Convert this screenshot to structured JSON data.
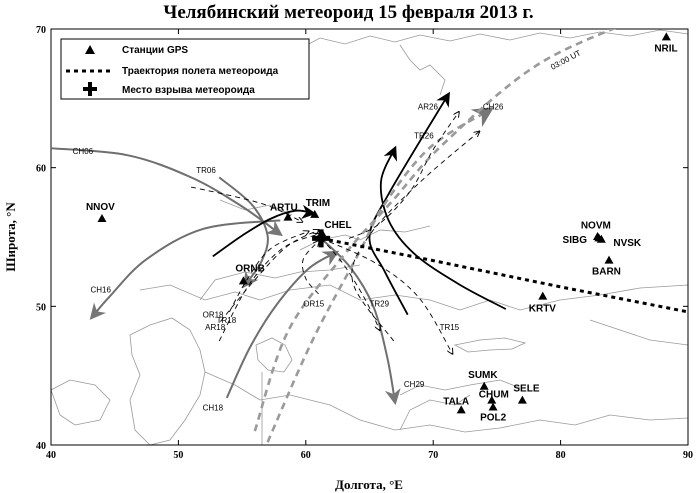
{
  "title": "Челябинский метеороид 15 февраля 2013 г.",
  "axes": {
    "xlabel": "Долгота, °E",
    "ylabel": "Широта, °N",
    "xlim": [
      40,
      90
    ],
    "ylim": [
      40,
      70
    ],
    "xticks": [
      "40",
      "50",
      "60",
      "70",
      "80",
      "90"
    ],
    "yticks": [
      "40",
      "50",
      "60",
      "70"
    ]
  },
  "legend": {
    "stations": "Станции GPS",
    "trajectory": "Траектория полета метеороида",
    "explosion": "Место взрыва метеороида"
  },
  "time_label": "03:00 UT",
  "explosion_point": {
    "lon": 61.2,
    "lat": 54.9
  },
  "stations": [
    {
      "name": "NRIL",
      "lon": 88.3,
      "lat": 69.4
    },
    {
      "name": "NNOV",
      "lon": 44.0,
      "lat": 56.3
    },
    {
      "name": "ARTU",
      "lon": 58.6,
      "lat": 56.4
    },
    {
      "name": "TRIM",
      "lon": 60.7,
      "lat": 56.6
    },
    {
      "name": "CHEL",
      "lon": 61.3,
      "lat": 55.2
    },
    {
      "name": "ORNB",
      "lon": 55.1,
      "lat": 51.8
    },
    {
      "name": "NOVM",
      "lon": 83.0,
      "lat": 54.9
    },
    {
      "name": "SIBG",
      "lon": 82.9,
      "lat": 55.0
    },
    {
      "name": "NVSK",
      "lon": 83.2,
      "lat": 54.8
    },
    {
      "name": "BARN",
      "lon": 83.8,
      "lat": 53.3
    },
    {
      "name": "KRTV",
      "lon": 78.6,
      "lat": 50.7
    },
    {
      "name": "SUMK",
      "lon": 74.0,
      "lat": 44.2
    },
    {
      "name": "CHUM",
      "lon": 74.6,
      "lat": 43.2
    },
    {
      "name": "TALA",
      "lon": 72.2,
      "lat": 42.5
    },
    {
      "name": "POL2",
      "lon": 74.7,
      "lat": 42.7
    },
    {
      "name": "SELE",
      "lon": 77.0,
      "lat": 43.2
    }
  ],
  "trajectory": [
    [
      61.2,
      54.9
    ],
    [
      70,
      53.3
    ],
    [
      80,
      51.4
    ],
    [
      90,
      49.6
    ]
  ],
  "tracks": [
    {
      "name": "CH06",
      "style": "solid",
      "points": [
        [
          40,
          61.4
        ],
        [
          46,
          60.9
        ],
        [
          51,
          59.3
        ],
        [
          55,
          57.2
        ],
        [
          58,
          55.2
        ]
      ]
    },
    {
      "name": "CH16",
      "style": "solid",
      "points": [
        [
          58,
          56.2
        ],
        [
          52,
          55.6
        ],
        [
          47.5,
          53.4
        ],
        [
          44.6,
          50.7
        ],
        [
          43.2,
          49.2
        ]
      ]
    },
    {
      "name": "CH18",
      "style": "solid",
      "points": [
        [
          53.8,
          43.4
        ],
        [
          55.6,
          47
        ],
        [
          57.7,
          50.1
        ],
        [
          60.2,
          52.7
        ],
        [
          62.4,
          53.9
        ]
      ]
    },
    {
      "name": "CH29",
      "style": "solid",
      "points": [
        [
          61.2,
          54.9
        ],
        [
          63.5,
          52.8
        ],
        [
          65.3,
          50
        ],
        [
          66.4,
          46.3
        ],
        [
          67.0,
          43.1
        ]
      ]
    },
    {
      "name": "AR26",
      "style": "solid",
      "points": [
        [
          68,
          49.4
        ],
        [
          66.2,
          52.5
        ],
        [
          65.0,
          55.0
        ],
        [
          66.5,
          58.1
        ],
        [
          71.2,
          65.3
        ]
      ]
    },
    {
      "name": "BLACK-1",
      "style": "solid",
      "points": [
        [
          75.7,
          49.8
        ],
        [
          72,
          51.6
        ],
        [
          68.5,
          53.8
        ],
        [
          66.5,
          56.2
        ],
        [
          65.9,
          59.0
        ],
        [
          67.0,
          61.4
        ]
      ]
    },
    {
      "name": "ARTU-CURVE",
      "style": "solid",
      "points": [
        [
          53.2,
          59.3
        ],
        [
          55.8,
          57.3
        ],
        [
          57.0,
          55.1
        ],
        [
          56.5,
          53.2
        ],
        [
          55.2,
          51.5
        ]
      ]
    },
    {
      "name": "TRIM-CURVE",
      "style": "solid",
      "points": [
        [
          52.7,
          53.6
        ],
        [
          55.0,
          55.1
        ],
        [
          57.2,
          56.3
        ],
        [
          59.2,
          56.9
        ],
        [
          60.6,
          56.7
        ]
      ]
    },
    {
      "name": "CH26",
      "style": "dashed-gray",
      "points": [
        [
          57,
          40.2
        ],
        [
          60.5,
          47.5
        ],
        [
          64.2,
          53.9
        ],
        [
          66.2,
          57.4
        ],
        [
          69.8,
          61.5
        ],
        [
          74.5,
          64.2
        ]
      ]
    },
    {
      "name": "03:00 UT",
      "style": "dashed-gray",
      "points": [
        [
          56,
          41
        ],
        [
          58.6,
          48.2
        ],
        [
          63.0,
          53.7
        ],
        [
          66.8,
          57.6
        ],
        [
          70.9,
          61.8
        ],
        [
          78.5,
          67.6
        ],
        [
          88,
          71.4
        ]
      ]
    },
    {
      "name": "TR06",
      "style": "dashed",
      "points": [
        [
          51.0,
          58.6
        ],
        [
          54.5,
          57.9
        ],
        [
          57.2,
          57.2
        ],
        [
          59.7,
          56.1
        ]
      ]
    },
    {
      "name": "TR18",
      "style": "dashed",
      "points": [
        [
          54.0,
          49.6
        ],
        [
          55.5,
          52.1
        ],
        [
          57.3,
          54.2
        ],
        [
          60.2,
          55.4
        ]
      ]
    },
    {
      "name": "OR18",
      "style": "dashed",
      "points": [
        [
          53.3,
          48.9
        ],
        [
          55.8,
          51.7
        ],
        [
          58.5,
          54.3
        ],
        [
          61.0,
          55.5
        ]
      ]
    },
    {
      "name": "AR18",
      "style": "dashed",
      "points": [
        [
          53.2,
          47.5
        ],
        [
          55.5,
          51.5
        ],
        [
          58.2,
          54.2
        ],
        [
          61.0,
          55.2
        ]
      ]
    },
    {
      "name": "OR15",
      "style": "dashed",
      "points": [
        [
          61.0,
          50.9
        ],
        [
          60.0,
          52.0
        ],
        [
          59.8,
          53.4
        ],
        [
          61.0,
          54.7
        ]
      ]
    },
    {
      "name": "TR29",
      "style": "dashed",
      "points": [
        [
          61.2,
          54.9
        ],
        [
          62.9,
          53.1
        ],
        [
          64.6,
          50.6
        ],
        [
          65.8,
          48.3
        ]
      ]
    },
    {
      "name": "TR15",
      "style": "dashed",
      "points": [
        [
          61.2,
          54.9
        ],
        [
          65.5,
          53.1
        ],
        [
          68.9,
          50.6
        ],
        [
          71.5,
          46.6
        ]
      ]
    },
    {
      "name": "TR26",
      "style": "dashed",
      "points": [
        [
          63.4,
          54.9
        ],
        [
          65.7,
          55.9
        ],
        [
          68.2,
          58.3
        ],
        [
          70.0,
          61.3
        ],
        [
          72.0,
          64.0
        ]
      ]
    },
    {
      "name": "CH26-dash",
      "style": "dashed",
      "points": [
        [
          66.9,
          47.5
        ],
        [
          63.7,
          51.7
        ],
        [
          64.9,
          55.0
        ],
        [
          68.9,
          58.9
        ],
        [
          73.6,
          62.6
        ]
      ]
    }
  ],
  "track_labels": [
    {
      "text": "CH06",
      "lon": 41.7,
      "lat": 61.0
    },
    {
      "text": "TR06",
      "lon": 51.4,
      "lat": 59.6
    },
    {
      "text": "CH16",
      "lon": 43.1,
      "lat": 51.0
    },
    {
      "text": "OR18",
      "lon": 51.9,
      "lat": 49.2
    },
    {
      "text": "TR18",
      "lon": 53.0,
      "lat": 48.8
    },
    {
      "text": "AR18",
      "lon": 52.1,
      "lat": 48.3
    },
    {
      "text": "CH18",
      "lon": 51.9,
      "lat": 42.5
    },
    {
      "text": "OR15",
      "lon": 59.8,
      "lat": 50.0
    },
    {
      "text": "TR29",
      "lon": 65.0,
      "lat": 50.0
    },
    {
      "text": "TR15",
      "lon": 70.5,
      "lat": 48.3
    },
    {
      "text": "CH29",
      "lon": 67.7,
      "lat": 44.2
    },
    {
      "text": "AR26",
      "lon": 68.8,
      "lat": 64.2
    },
    {
      "text": "TR26",
      "lon": 68.5,
      "lat": 62.1
    },
    {
      "text": "CH26",
      "lon": 73.9,
      "lat": 64.2
    }
  ]
}
